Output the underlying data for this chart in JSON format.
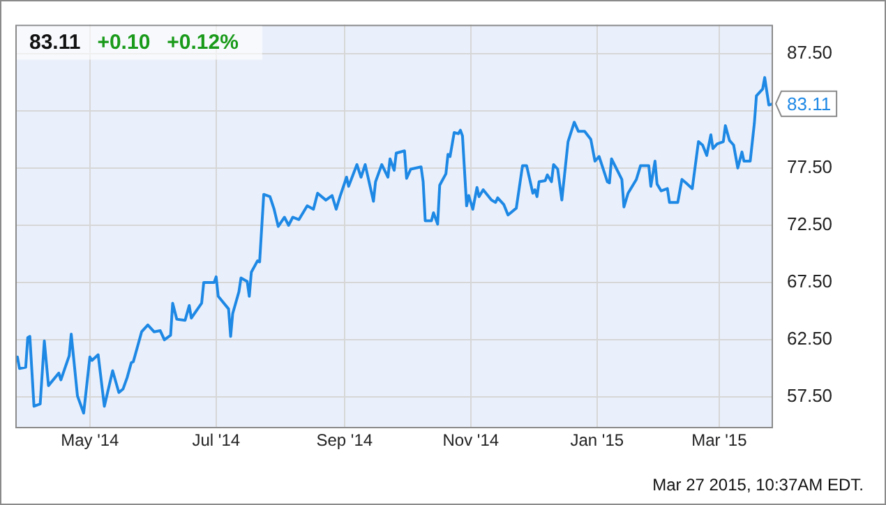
{
  "chart_data": {
    "type": "line",
    "x": [
      "2014-03-26",
      "2014-03-27",
      "2014-03-28",
      "2014-03-31",
      "2014-04-01",
      "2014-04-02",
      "2014-04-04",
      "2014-04-07",
      "2014-04-09",
      "2014-04-11",
      "2014-04-16",
      "2014-04-17",
      "2014-04-21",
      "2014-04-22",
      "2014-04-25",
      "2014-04-28",
      "2014-05-01",
      "2014-05-02",
      "2014-05-05",
      "2014-05-08",
      "2014-05-12",
      "2014-05-15",
      "2014-05-17",
      "2014-05-19",
      "2014-05-21",
      "2014-05-22",
      "2014-05-26",
      "2014-05-29",
      "2014-06-01",
      "2014-06-04",
      "2014-06-06",
      "2014-06-09",
      "2014-06-10",
      "2014-06-12",
      "2014-06-16",
      "2014-06-18",
      "2014-06-19",
      "2014-06-24",
      "2014-06-25",
      "2014-06-30",
      "2014-07-01",
      "2014-07-02",
      "2014-07-07",
      "2014-07-08",
      "2014-07-09",
      "2014-07-12",
      "2014-07-13",
      "2014-07-16",
      "2014-07-17",
      "2014-07-18",
      "2014-07-21",
      "2014-07-22",
      "2014-07-24",
      "2014-07-27",
      "2014-07-29",
      "2014-07-31",
      "2014-08-03",
      "2014-08-05",
      "2014-08-07",
      "2014-08-10",
      "2014-08-14",
      "2014-08-17",
      "2014-08-19",
      "2014-08-23",
      "2014-08-26",
      "2014-08-28",
      "2014-08-30",
      "2014-09-02",
      "2014-09-03",
      "2014-09-07",
      "2014-09-09",
      "2014-09-11",
      "2014-09-12",
      "2014-09-15",
      "2014-09-16",
      "2014-09-19",
      "2014-09-22",
      "2014-09-23",
      "2014-09-25",
      "2014-09-26",
      "2014-09-30",
      "2014-10-01",
      "2014-10-03",
      "2014-10-08",
      "2014-10-09",
      "2014-10-10",
      "2014-10-13",
      "2014-10-14",
      "2014-10-16",
      "2014-10-17",
      "2014-10-20",
      "2014-10-21",
      "2014-10-22",
      "2014-10-24",
      "2014-10-26",
      "2014-10-27",
      "2014-10-28",
      "2014-10-30",
      "2014-10-31",
      "2014-11-02",
      "2014-11-04",
      "2014-11-05",
      "2014-11-07",
      "2014-11-11",
      "2014-11-13",
      "2014-11-14",
      "2014-11-17",
      "2014-11-19",
      "2014-11-23",
      "2014-11-26",
      "2014-11-28",
      "2014-12-01",
      "2014-12-02",
      "2014-12-03",
      "2014-12-04",
      "2014-12-07",
      "2014-12-08",
      "2014-12-10",
      "2014-12-11",
      "2014-12-13",
      "2014-12-15",
      "2014-12-18",
      "2014-12-21",
      "2014-12-23",
      "2014-12-26",
      "2014-12-29",
      "2014-12-31",
      "2015-01-02",
      "2015-01-06",
      "2015-01-07",
      "2015-01-08",
      "2015-01-13",
      "2015-01-14",
      "2015-01-16",
      "2015-01-20",
      "2015-01-22",
      "2015-01-26",
      "2015-01-27",
      "2015-01-29",
      "2015-01-30",
      "2015-02-01",
      "2015-02-04",
      "2015-02-05",
      "2015-02-09",
      "2015-02-11",
      "2015-02-13",
      "2015-02-16",
      "2015-02-19",
      "2015-02-21",
      "2015-02-23",
      "2015-02-25",
      "2015-02-26",
      "2015-02-28",
      "2015-03-03",
      "2015-03-04",
      "2015-03-06",
      "2015-03-08",
      "2015-03-10",
      "2015-03-12",
      "2015-03-13",
      "2015-03-16",
      "2015-03-18",
      "2015-03-19",
      "2015-03-22",
      "2015-03-23",
      "2015-03-25",
      "2015-03-27"
    ],
    "values": [
      60.6,
      61.0,
      60.0,
      60.1,
      62.7,
      62.8,
      56.7,
      56.9,
      62.4,
      58.5,
      59.6,
      59.0,
      61.1,
      63.0,
      57.6,
      56.1,
      61.0,
      60.7,
      61.2,
      56.7,
      59.8,
      57.9,
      58.2,
      59.2,
      60.5,
      60.6,
      63.2,
      63.8,
      63.2,
      63.3,
      62.5,
      62.9,
      65.7,
      64.3,
      64.2,
      65.5,
      64.4,
      65.7,
      67.5,
      67.5,
      68.0,
      66.3,
      65.2,
      62.8,
      64.8,
      66.7,
      67.9,
      67.6,
      66.3,
      68.4,
      69.4,
      69.3,
      75.2,
      75.0,
      73.9,
      72.4,
      73.2,
      72.5,
      73.2,
      73.0,
      74.2,
      73.9,
      75.3,
      74.7,
      75.1,
      73.9,
      75.1,
      76.7,
      75.9,
      77.8,
      76.7,
      77.8,
      77.0,
      74.6,
      76.3,
      77.8,
      76.7,
      78.3,
      77.3,
      78.8,
      79.0,
      76.6,
      77.4,
      77.6,
      76.3,
      72.9,
      72.9,
      73.6,
      72.6,
      76.0,
      77.0,
      78.7,
      78.5,
      80.6,
      80.5,
      80.8,
      80.3,
      74.2,
      75.1,
      73.9,
      75.8,
      75.0,
      75.6,
      74.7,
      74.5,
      74.9,
      74.3,
      73.4,
      74.0,
      77.7,
      77.7,
      75.3,
      75.6,
      75.0,
      76.3,
      76.4,
      76.9,
      76.3,
      77.8,
      77.4,
      74.7,
      79.8,
      81.5,
      80.7,
      80.7,
      80.0,
      78.1,
      78.5,
      76.3,
      76.2,
      78.3,
      76.5,
      74.1,
      75.3,
      76.5,
      77.7,
      77.7,
      75.9,
      78.1,
      76.1,
      75.5,
      75.7,
      74.5,
      74.5,
      76.5,
      76.2,
      75.7,
      79.8,
      79.5,
      78.6,
      80.4,
      79.2,
      79.6,
      79.8,
      81.2,
      79.9,
      79.5,
      77.5,
      78.9,
      78.1,
      78.1,
      81.4,
      83.8,
      84.4,
      85.4,
      83.0,
      83.11
    ],
    "color": "#1e88e5",
    "xlim": [
      "2014-03-26",
      "2015-03-27"
    ],
    "xticks": [
      {
        "value": "2014-05-01",
        "label": "May '14"
      },
      {
        "value": "2014-07-01",
        "label": "Jul '14"
      },
      {
        "value": "2014-09-01",
        "label": "Sep '14"
      },
      {
        "value": "2014-11-01",
        "label": "Nov '14"
      },
      {
        "value": "2015-01-01",
        "label": "Jan '15"
      },
      {
        "value": "2015-03-01",
        "label": "Mar '15"
      }
    ],
    "ylim": [
      54.9,
      90
    ],
    "yticks": [
      {
        "value": 57.5,
        "label": "57.50"
      },
      {
        "value": 62.5,
        "label": "62.50"
      },
      {
        "value": 67.5,
        "label": "67.50"
      },
      {
        "value": 72.5,
        "label": "72.50"
      },
      {
        "value": 77.5,
        "label": "77.50"
      },
      {
        "value": 82.5,
        "label": null
      },
      {
        "value": 87.5,
        "label": "87.50"
      }
    ],
    "grid": true,
    "legend": false,
    "marker": "none",
    "line_style": "solid",
    "annotations": [
      "83.11",
      "+0.10",
      "+0.12%",
      {
        "text": "83.11",
        "x": "2015-03-27",
        "y": 83.11
      },
      "Mar 27 2015, 10:37AM EDT."
    ]
  }
}
